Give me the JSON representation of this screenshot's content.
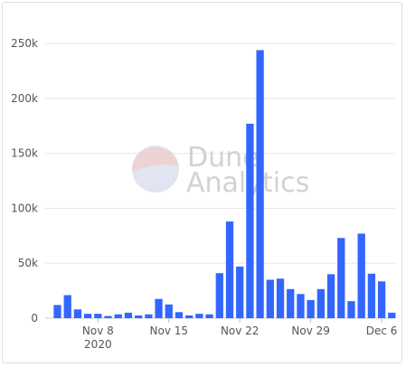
{
  "chart_data": {
    "type": "bar",
    "title": "",
    "xlabel": "",
    "ylabel": "",
    "ylim": [
      0,
      260000
    ],
    "grid": true,
    "bar_color": "#3366ff",
    "grid_color": "#e8e8e8",
    "y_ticks": [
      {
        "value": 0,
        "label": "0"
      },
      {
        "value": 50000,
        "label": "50k"
      },
      {
        "value": 100000,
        "label": "100k"
      },
      {
        "value": 150000,
        "label": "150k"
      },
      {
        "value": 200000,
        "label": "200k"
      },
      {
        "value": 250000,
        "label": "250k"
      }
    ],
    "x_ticks": [
      {
        "date": "2020-11-08",
        "label": "Nov 8",
        "sublabel": "2020"
      },
      {
        "date": "2020-11-15",
        "label": "Nov 15",
        "sublabel": ""
      },
      {
        "date": "2020-11-22",
        "label": "Nov 22",
        "sublabel": ""
      },
      {
        "date": "2020-11-29",
        "label": "Nov 29",
        "sublabel": ""
      },
      {
        "date": "2020-12-06",
        "label": "Dec 6",
        "sublabel": ""
      }
    ],
    "x": [
      "2020-11-04",
      "2020-11-05",
      "2020-11-06",
      "2020-11-07",
      "2020-11-08",
      "2020-11-09",
      "2020-11-10",
      "2020-11-11",
      "2020-11-12",
      "2020-11-13",
      "2020-11-14",
      "2020-11-15",
      "2020-11-16",
      "2020-11-17",
      "2020-11-18",
      "2020-11-19",
      "2020-11-20",
      "2020-11-21",
      "2020-11-22",
      "2020-11-23",
      "2020-11-24",
      "2020-11-25",
      "2020-11-26",
      "2020-11-27",
      "2020-11-28",
      "2020-11-29",
      "2020-11-30",
      "2020-12-01",
      "2020-12-02",
      "2020-12-03",
      "2020-12-04",
      "2020-12-05",
      "2020-12-06",
      "2020-12-07"
    ],
    "values": [
      12000,
      21000,
      8000,
      4000,
      4000,
      2000,
      3500,
      5000,
      2500,
      3500,
      17500,
      12500,
      5500,
      2500,
      4000,
      3500,
      41000,
      88000,
      47000,
      177000,
      244000,
      35000,
      36000,
      26500,
      22000,
      16500,
      26500,
      40000,
      73000,
      15500,
      77000,
      40500,
      33500,
      5000
    ]
  },
  "watermark": {
    "line1": "Dune",
    "line2": "Analytics",
    "logo_color_top": "#f7c5b7",
    "logo_color_bottom": "#c9cde6"
  }
}
